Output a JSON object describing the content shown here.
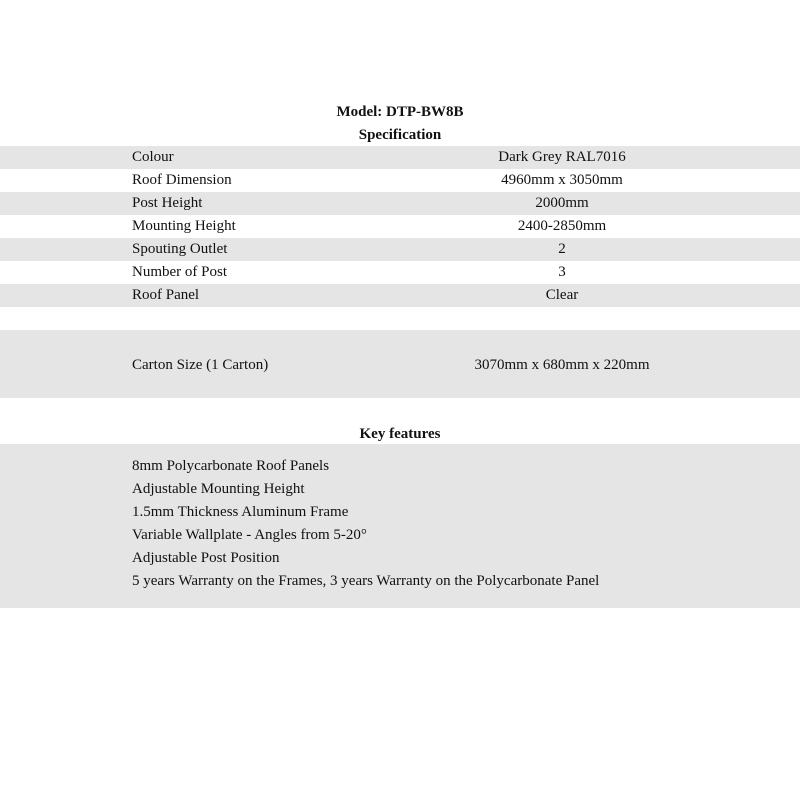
{
  "model_title": "Model: DTP-BW8B",
  "spec_title": "Specification",
  "specs": [
    {
      "label": "Colour",
      "value": "Dark Grey RAL7016"
    },
    {
      "label": "Roof Dimension",
      "value": "4960mm x 3050mm"
    },
    {
      "label": "Post Height",
      "value": "2000mm"
    },
    {
      "label": "Mounting Height",
      "value": "2400-2850mm"
    },
    {
      "label": "Spouting Outlet",
      "value": "2"
    },
    {
      "label": "Number of Post",
      "value": "3"
    },
    {
      "label": "Roof Panel",
      "value": "Clear"
    }
  ],
  "carton": {
    "label": "Carton Size (1 Carton)",
    "value": "3070mm x 680mm x 220mm"
  },
  "features_title": "Key features",
  "features": [
    "8mm Polycarbonate Roof Panels",
    "Adjustable Mounting Height",
    "1.5mm Thickness Aluminum Frame",
    "Variable Wallplate - Angles from 5-20°",
    "Adjustable Post Position",
    "5 years Warranty on the Frames, 3 years Warranty on the Polycarbonate Panel"
  ],
  "colors": {
    "row_gray": "#e6e5e6",
    "text": "#111111"
  }
}
